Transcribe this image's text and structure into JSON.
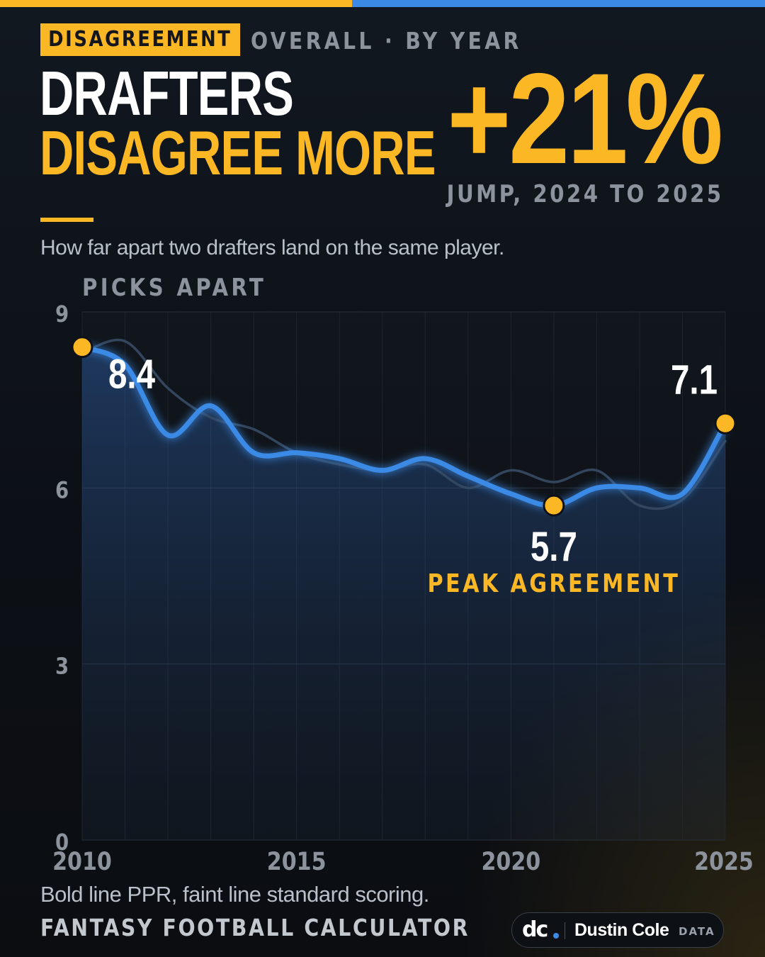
{
  "header": {
    "tag": "DISAGREEMENT",
    "crumb": "OVERALL · BY YEAR",
    "title_line1": "DRAFTERS",
    "title_line2": "DISAGREE MORE",
    "stat_value": "+21%",
    "stat_caption": "JUMP, 2024 TO 2025",
    "subtitle": "How far apart two drafters land on the same player."
  },
  "footer": {
    "note": "Bold line PPR, faint line standard scoring.",
    "source": "FANTASY FOOTBALL CALCULATOR",
    "brand_logo": "dc",
    "brand_name": "Dustin Cole",
    "brand_sub": "DATA"
  },
  "colors": {
    "accent": "#fbb824",
    "ppr_line": "#3a8ae6",
    "standard_line": "#33465e",
    "background": "#0e1218",
    "muted_text": "#8c939d"
  },
  "chart_data": {
    "type": "line",
    "title": "",
    "ylabel": "PICKS APART",
    "xlabel": "",
    "x": [
      2010,
      2011,
      2012,
      2013,
      2014,
      2015,
      2016,
      2017,
      2018,
      2019,
      2020,
      2021,
      2022,
      2023,
      2024,
      2025
    ],
    "xlim": [
      2010,
      2025
    ],
    "ylim": [
      0,
      9
    ],
    "x_ticks": [
      2010,
      2015,
      2020,
      2025
    ],
    "y_ticks": [
      0,
      3,
      6,
      9
    ],
    "grid": true,
    "series": [
      {
        "name": "Bold line PPR",
        "style": "bold",
        "values": [
          8.4,
          8.1,
          6.9,
          7.4,
          6.6,
          6.6,
          6.5,
          6.3,
          6.5,
          6.2,
          5.9,
          5.7,
          6.0,
          6.0,
          5.9,
          7.1
        ]
      },
      {
        "name": "faint line standard scoring",
        "style": "faint",
        "values": [
          8.3,
          8.5,
          7.7,
          7.2,
          7.0,
          6.6,
          6.4,
          6.3,
          6.4,
          6.0,
          6.3,
          6.1,
          6.3,
          5.7,
          5.8,
          6.8
        ]
      }
    ],
    "annotations": [
      {
        "x": 2010,
        "y": 8.4,
        "label": "8.4",
        "note": ""
      },
      {
        "x": 2021,
        "y": 5.7,
        "label": "5.7",
        "note": "PEAK AGREEMENT"
      },
      {
        "x": 2025,
        "y": 7.1,
        "label": "7.1",
        "note": ""
      }
    ]
  }
}
